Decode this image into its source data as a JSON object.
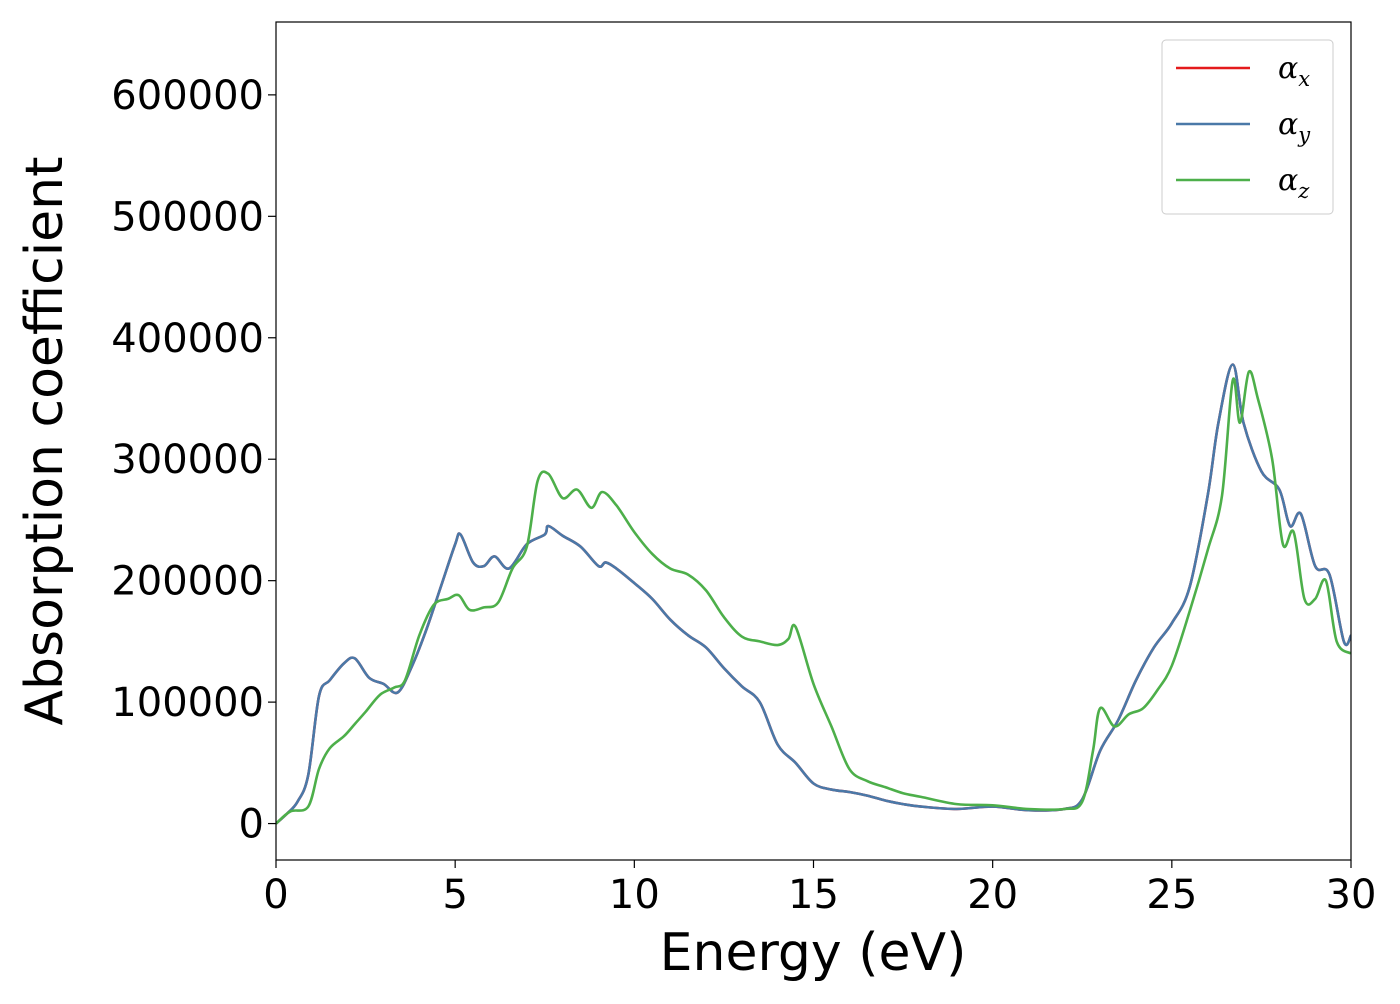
{
  "chart_data": {
    "type": "line",
    "xlabel": "Energy (eV)",
    "ylabel": "Absorption coefficient",
    "xlim": [
      0,
      30
    ],
    "ylim": [
      -30000,
      660000
    ],
    "xticks": [
      0,
      5,
      10,
      15,
      20,
      25,
      30
    ],
    "yticks": [
      0,
      100000,
      200000,
      300000,
      400000,
      500000,
      600000
    ],
    "xtick_labels": [
      "0",
      "5",
      "10",
      "15",
      "20",
      "25",
      "30"
    ],
    "ytick_labels": [
      "0",
      "100000",
      "200000",
      "300000",
      "400000",
      "500000",
      "600000"
    ],
    "grid": false,
    "legend_position": "top-right",
    "series": [
      {
        "name": "α",
        "subscript": "x",
        "color": "#e41a1c",
        "x": [
          0,
          0.3,
          0.6,
          0.9,
          1.2,
          1.5,
          1.9,
          2.2,
          2.6,
          3.0,
          3.4,
          3.8,
          4.2,
          4.6,
          5.0,
          5.15,
          5.5,
          5.8,
          6.1,
          6.5,
          7.0,
          7.5,
          7.6,
          8.0,
          8.5,
          9.0,
          9.2,
          9.5,
          10.0,
          10.5,
          11.0,
          11.5,
          12.0,
          12.5,
          13.0,
          13.5,
          14.0,
          14.5,
          15.0,
          15.5,
          16.0,
          16.5,
          17.0,
          17.5,
          18.0,
          19.0,
          20.0,
          21.0,
          22.0,
          22.5,
          23.0,
          23.5,
          24.0,
          24.5,
          25.0,
          25.5,
          26.0,
          26.3,
          26.7,
          27.0,
          27.5,
          28.0,
          28.3,
          28.6,
          29.0,
          29.4,
          29.8,
          30.0
        ],
        "y": [
          0,
          8000,
          18000,
          40000,
          105000,
          118000,
          132000,
          136000,
          120000,
          115000,
          108000,
          130000,
          160000,
          195000,
          230000,
          238000,
          215000,
          212000,
          220000,
          210000,
          230000,
          238000,
          245000,
          237000,
          228000,
          212000,
          215000,
          210000,
          198000,
          185000,
          168000,
          155000,
          145000,
          128000,
          113000,
          100000,
          65000,
          50000,
          33000,
          28000,
          26000,
          23000,
          19000,
          16000,
          14000,
          12000,
          14000,
          11000,
          12000,
          20000,
          60000,
          85000,
          118000,
          145000,
          165000,
          195000,
          270000,
          330000,
          378000,
          330000,
          290000,
          275000,
          245000,
          255000,
          212000,
          205000,
          150000,
          155000
        ]
      },
      {
        "name": "α",
        "subscript": "y",
        "color": "#4a79a8",
        "x": [
          0,
          0.3,
          0.6,
          0.9,
          1.2,
          1.5,
          1.9,
          2.2,
          2.6,
          3.0,
          3.4,
          3.8,
          4.2,
          4.6,
          5.0,
          5.15,
          5.5,
          5.8,
          6.1,
          6.5,
          7.0,
          7.5,
          7.6,
          8.0,
          8.5,
          9.0,
          9.2,
          9.5,
          10.0,
          10.5,
          11.0,
          11.5,
          12.0,
          12.5,
          13.0,
          13.5,
          14.0,
          14.5,
          15.0,
          15.5,
          16.0,
          16.5,
          17.0,
          17.5,
          18.0,
          19.0,
          20.0,
          21.0,
          22.0,
          22.5,
          23.0,
          23.5,
          24.0,
          24.5,
          25.0,
          25.5,
          26.0,
          26.3,
          26.7,
          27.0,
          27.5,
          28.0,
          28.3,
          28.6,
          29.0,
          29.4,
          29.8,
          30.0
        ],
        "y": [
          0,
          8000,
          18000,
          40000,
          105000,
          118000,
          132000,
          136000,
          120000,
          115000,
          108000,
          130000,
          160000,
          195000,
          230000,
          238000,
          215000,
          212000,
          220000,
          210000,
          230000,
          238000,
          245000,
          237000,
          228000,
          212000,
          215000,
          210000,
          198000,
          185000,
          168000,
          155000,
          145000,
          128000,
          113000,
          100000,
          65000,
          50000,
          33000,
          28000,
          26000,
          23000,
          19000,
          16000,
          14000,
          12000,
          14000,
          11000,
          12000,
          20000,
          60000,
          85000,
          118000,
          145000,
          165000,
          195000,
          270000,
          330000,
          378000,
          330000,
          290000,
          275000,
          245000,
          255000,
          212000,
          205000,
          150000,
          155000
        ]
      },
      {
        "name": "α",
        "subscript": "z",
        "color": "#4daf4a",
        "x": [
          0,
          0.4,
          0.9,
          1.2,
          1.5,
          1.9,
          2.2,
          2.5,
          2.9,
          3.3,
          3.6,
          4.0,
          4.4,
          4.8,
          5.1,
          5.4,
          5.8,
          6.2,
          6.6,
          7.0,
          7.3,
          7.6,
          8.0,
          8.4,
          8.8,
          9.1,
          9.5,
          10.0,
          10.5,
          11.0,
          11.5,
          12.0,
          12.5,
          13.0,
          13.5,
          14.0,
          14.3,
          14.5,
          15.0,
          15.5,
          16.0,
          16.5,
          17.0,
          17.5,
          18.0,
          19.0,
          20.0,
          21.0,
          22.0,
          22.5,
          22.8,
          23.0,
          23.4,
          23.8,
          24.2,
          24.6,
          25.0,
          25.5,
          26.0,
          26.4,
          26.7,
          26.9,
          27.15,
          27.4,
          27.8,
          28.1,
          28.4,
          28.7,
          29.0,
          29.3,
          29.6,
          30.0
        ],
        "y": [
          0,
          10000,
          14000,
          45000,
          62000,
          72000,
          82000,
          92000,
          106000,
          112000,
          118000,
          155000,
          180000,
          185000,
          188000,
          176000,
          178000,
          182000,
          210000,
          228000,
          282000,
          288000,
          268000,
          275000,
          260000,
          273000,
          262000,
          240000,
          222000,
          210000,
          205000,
          192000,
          170000,
          154000,
          150000,
          147000,
          152000,
          162000,
          115000,
          80000,
          45000,
          35000,
          30000,
          25000,
          22000,
          16000,
          15000,
          12000,
          12000,
          18000,
          60000,
          95000,
          80000,
          90000,
          95000,
          110000,
          130000,
          175000,
          225000,
          270000,
          365000,
          330000,
          372000,
          350000,
          300000,
          230000,
          240000,
          185000,
          185000,
          200000,
          150000,
          140000
        ]
      }
    ]
  }
}
